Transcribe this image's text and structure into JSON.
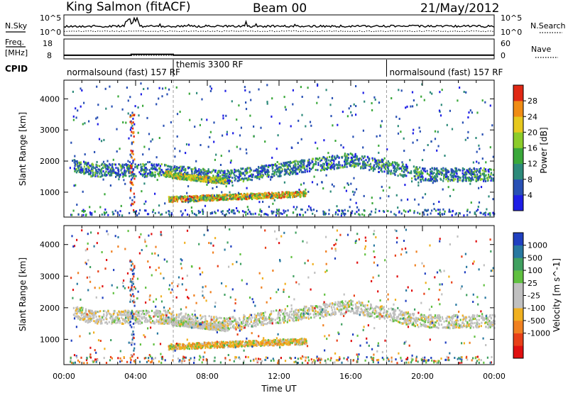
{
  "header": {
    "station": "King Salmon (fitACF)",
    "beam": "Beam 00",
    "date": "21/May/2012"
  },
  "side_labels": {
    "nsky": "N.Sky",
    "nsearch": "N.Search",
    "freq": "Freq.",
    "freq_unit": "[MHz]",
    "nave": "Nave",
    "cpid": "CPID"
  },
  "noise_panel": {
    "left_ticks": [
      "10^5",
      "10^0"
    ],
    "right_ticks": [
      "10^5",
      "10^0"
    ]
  },
  "freq_panel": {
    "left_ticks": [
      "18",
      "8"
    ],
    "right_ticks": [
      "60",
      "0"
    ],
    "freq_series": [
      {
        "t": 0,
        "mhz": 10.3
      },
      {
        "t": 3.75,
        "mhz": 10.3
      },
      {
        "t": 3.75,
        "mhz": 10.9
      },
      {
        "t": 6.1,
        "mhz": 10.9
      },
      {
        "t": 6.1,
        "mhz": 10.4
      },
      {
        "t": 24,
        "mhz": 10.4
      }
    ]
  },
  "cpid_segments": [
    {
      "label": "normalsound (fast) 157 RF",
      "start": 0,
      "end": 6.1
    },
    {
      "label": "themis 3300 RF",
      "start": 6.1,
      "end": 18.0
    },
    {
      "label": "normalsound (fast) 157 RF",
      "start": 18.0,
      "end": 24
    }
  ],
  "chart_data": [
    {
      "type": "heatmap",
      "quantity": "power",
      "xlabel": "",
      "ylabel": "Slant Range [km]",
      "xlim": [
        0,
        24
      ],
      "ylim": [
        200,
        4600
      ],
      "yticks": [
        "1000",
        "2000",
        "3000",
        "4000"
      ],
      "colorbar": {
        "label": "Power [dB]",
        "range": [
          0,
          32
        ],
        "ticks": [
          "4",
          "8",
          "12",
          "16",
          "20",
          "24",
          "28"
        ],
        "colors": [
          "#1e1ee6",
          "#2850b4",
          "#2d8a7a",
          "#3aa83a",
          "#8ccc2a",
          "#e6c81e",
          "#f08c14",
          "#e02814"
        ]
      },
      "features": [
        {
          "name": "main band",
          "t_start": 0.5,
          "t_end": 24,
          "range_km": [
            1500,
            2100
          ],
          "power_db": [
            6,
            20
          ]
        },
        {
          "name": "strong echo",
          "t_start": 5.5,
          "t_end": 9.0,
          "range_km": [
            1400,
            1800
          ],
          "power_db": [
            16,
            26
          ]
        },
        {
          "name": "lower band",
          "t_start": 5.8,
          "t_end": 13.5,
          "range_km": [
            700,
            1050
          ],
          "power_db": [
            12,
            28
          ]
        }
      ]
    },
    {
      "type": "heatmap",
      "quantity": "velocity",
      "xlabel": "Time UT",
      "ylabel": "Slant Range [km]",
      "xlim": [
        0,
        24
      ],
      "ylim": [
        200,
        4600
      ],
      "xticks": [
        "00:00",
        "04:00",
        "08:00",
        "12:00",
        "16:00",
        "20:00",
        "00:00"
      ],
      "yticks": [
        "1000",
        "2000",
        "3000",
        "4000"
      ],
      "colorbar": {
        "label": "Velocity [m s^-1]",
        "ticks": [
          "1000",
          "500",
          "100",
          "25",
          "-25",
          "-100",
          "-500",
          "-1000"
        ],
        "colors": [
          "#2040c0",
          "#2878a0",
          "#40a060",
          "#60c040",
          "#c0c0c0",
          "#c0c0c0",
          "#f0b020",
          "#f08020",
          "#e84018",
          "#e01010"
        ]
      },
      "features": [
        {
          "name": "main band",
          "t_start": 0.5,
          "t_end": 24,
          "range_km": [
            1500,
            2100
          ],
          "velocity_ms": [
            -25,
            25
          ]
        },
        {
          "name": "lower band",
          "t_start": 5.8,
          "t_end": 13.5,
          "range_km": [
            700,
            1050
          ],
          "velocity_ms": [
            -500,
            -100
          ]
        }
      ]
    }
  ]
}
